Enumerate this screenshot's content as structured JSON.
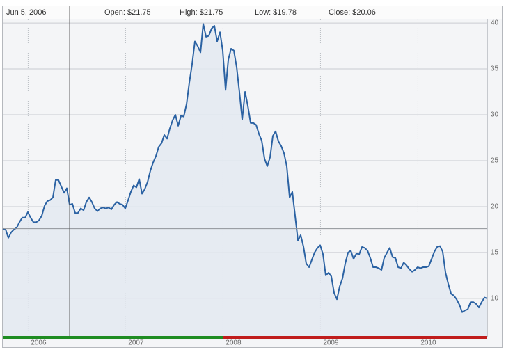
{
  "header": {
    "date": "Jun 5, 2006",
    "open": "Open: $21.75",
    "high": "High: $21.75",
    "low": "Low: $19.78",
    "close": "Close: $20.06"
  },
  "chart_data": {
    "type": "line",
    "x": [
      2005.74,
      2005.769,
      2005.797,
      2005.826,
      2005.854,
      2005.883,
      2005.911,
      2005.94,
      2005.969,
      2005.997,
      2006.026,
      2006.054,
      2006.083,
      2006.111,
      2006.14,
      2006.169,
      2006.197,
      2006.226,
      2006.254,
      2006.283,
      2006.311,
      2006.34,
      2006.369,
      2006.397,
      2006.426,
      2006.454,
      2006.483,
      2006.511,
      2006.54,
      2006.569,
      2006.597,
      2006.626,
      2006.654,
      2006.683,
      2006.711,
      2006.74,
      2006.769,
      2006.797,
      2006.826,
      2006.854,
      2006.883,
      2006.911,
      2006.94,
      2006.969,
      2006.997,
      2007.026,
      2007.054,
      2007.083,
      2007.111,
      2007.14,
      2007.169,
      2007.197,
      2007.226,
      2007.254,
      2007.283,
      2007.311,
      2007.34,
      2007.369,
      2007.397,
      2007.426,
      2007.454,
      2007.483,
      2007.511,
      2007.54,
      2007.569,
      2007.597,
      2007.626,
      2007.654,
      2007.683,
      2007.711,
      2007.74,
      2007.769,
      2007.797,
      2007.826,
      2007.854,
      2007.883,
      2007.911,
      2007.94,
      2007.969,
      2007.997,
      2008.026,
      2008.054,
      2008.083,
      2008.111,
      2008.14,
      2008.169,
      2008.197,
      2008.226,
      2008.254,
      2008.283,
      2008.311,
      2008.34,
      2008.369,
      2008.397,
      2008.426,
      2008.454,
      2008.483,
      2008.511,
      2008.54,
      2008.569,
      2008.597,
      2008.626,
      2008.654,
      2008.683,
      2008.711,
      2008.74,
      2008.769,
      2008.797,
      2008.826,
      2008.854,
      2008.883,
      2008.911,
      2008.94,
      2008.969,
      2008.997,
      2009.026,
      2009.054,
      2009.083,
      2009.111,
      2009.14,
      2009.169,
      2009.197,
      2009.226,
      2009.254,
      2009.283,
      2009.311,
      2009.34,
      2009.369,
      2009.397,
      2009.426,
      2009.454,
      2009.483,
      2009.511,
      2009.54,
      2009.569,
      2009.597,
      2009.626,
      2009.654,
      2009.683,
      2009.711,
      2009.74,
      2009.769,
      2009.797,
      2009.826,
      2009.854,
      2009.883,
      2009.911,
      2009.94,
      2009.969,
      2009.997,
      2010.026,
      2010.054,
      2010.083,
      2010.111,
      2010.14,
      2010.169,
      2010.197,
      2010.226,
      2010.254,
      2010.283,
      2010.311,
      2010.34,
      2010.369,
      2010.397,
      2010.426,
      2010.454,
      2010.483,
      2010.511,
      2010.54,
      2010.569,
      2010.597,
      2010.626,
      2010.654,
      2010.683,
      2010.711
    ],
    "series": [
      {
        "name": "Close",
        "color": "#2b62a3",
        "values": [
          17.6,
          17.5,
          16.6,
          17.2,
          17.5,
          17.7,
          18.3,
          18.8,
          18.8,
          19.4,
          18.8,
          18.3,
          18.3,
          18.5,
          19.0,
          20.1,
          20.6,
          20.7,
          21.0,
          22.9,
          22.9,
          22.2,
          21.5,
          22.0,
          20.2,
          20.3,
          19.3,
          19.3,
          19.8,
          19.6,
          20.5,
          21.0,
          20.5,
          19.8,
          19.5,
          19.8,
          19.9,
          19.8,
          19.9,
          19.7,
          20.2,
          20.5,
          20.3,
          20.2,
          19.8,
          20.7,
          21.6,
          22.3,
          22.1,
          23.0,
          21.4,
          21.9,
          22.7,
          23.9,
          24.8,
          25.5,
          26.5,
          26.9,
          27.8,
          27.4,
          28.5,
          29.4,
          30.0,
          28.8,
          29.9,
          29.8,
          31.2,
          33.5,
          35.5,
          38.0,
          37.5,
          36.8,
          39.9,
          38.5,
          38.6,
          39.4,
          39.7,
          38.0,
          39.0,
          37.0,
          32.7,
          36.0,
          37.2,
          37.0,
          35.2,
          32.4,
          29.5,
          32.5,
          31.0,
          29.1,
          29.1,
          28.9,
          27.9,
          27.2,
          25.2,
          24.4,
          25.4,
          27.7,
          28.2,
          27.1,
          26.6,
          25.8,
          24.4,
          21.0,
          21.6,
          19.0,
          16.3,
          16.9,
          15.6,
          13.8,
          13.4,
          14.2,
          15.0,
          15.5,
          15.8,
          14.8,
          12.5,
          12.8,
          12.4,
          10.6,
          9.9,
          11.3,
          12.2,
          13.8,
          15.0,
          15.2,
          14.3,
          14.9,
          14.8,
          15.6,
          15.5,
          15.2,
          14.4,
          13.4,
          13.4,
          13.3,
          13.1,
          14.4,
          15.0,
          15.5,
          14.5,
          14.4,
          13.4,
          13.3,
          13.9,
          13.6,
          13.2,
          12.9,
          13.1,
          13.4,
          13.3,
          13.4,
          13.4,
          13.5,
          14.3,
          15.1,
          15.6,
          15.7,
          15.1,
          12.8,
          11.6,
          10.5,
          10.3,
          9.9,
          9.3,
          8.5,
          8.7,
          8.8,
          9.6,
          9.6,
          9.4,
          9.0,
          9.6,
          10.1,
          10.0
        ]
      }
    ],
    "fill_color": "#e3e9f1",
    "baseline": 17.6,
    "crosshair_x": 2006.426,
    "xlim": [
      2005.74,
      2010.711
    ],
    "xticks": [
      2006,
      2007,
      2008,
      2009,
      2010
    ],
    "ylim": [
      5.9,
      41.9
    ],
    "yticks": [
      10,
      15,
      20,
      25,
      30,
      35,
      40
    ],
    "grid": true
  }
}
